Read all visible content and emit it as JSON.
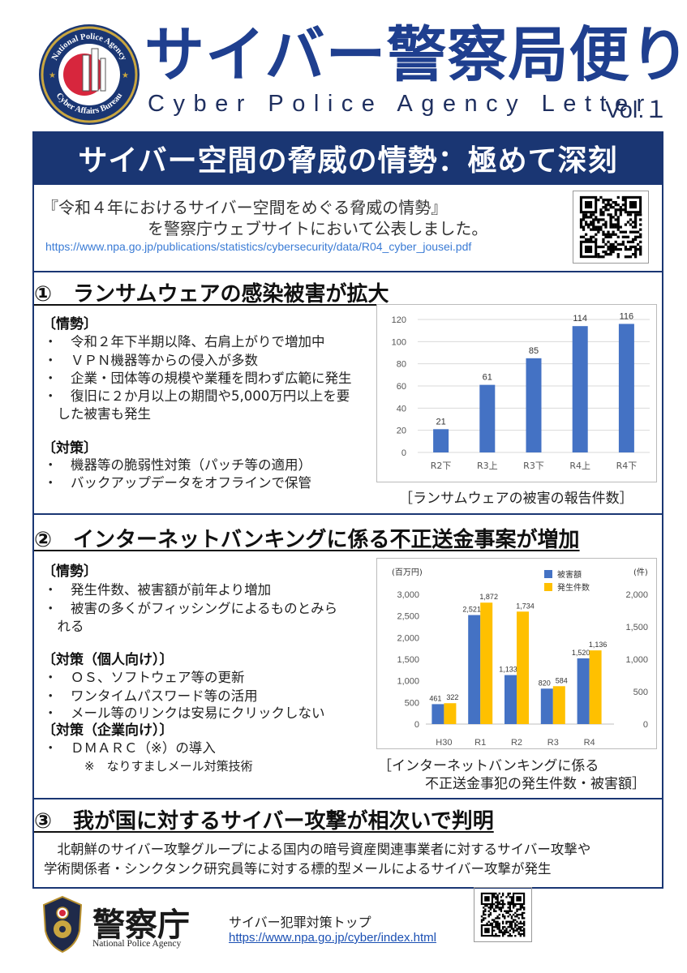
{
  "header": {
    "title": "サイバー警察局便り",
    "subtitle": "Cyber Police Agency Letter",
    "volume": "Vol.１",
    "emblem_top_text": "National Police Agency",
    "emblem_bottom_text": "Cyber Affairs Bureau"
  },
  "banner": {
    "text": "サイバー空間の脅威の情勢：極めて深刻"
  },
  "intro": {
    "line1": "『令和４年におけるサイバー空間をめぐる脅威の情勢』",
    "line2": "を警察庁ウェブサイトにおいて公表しました。",
    "url": "https://www.npa.go.jp/publications/statistics/cybersecurity/data/R04_cyber_jousei.pdf"
  },
  "section1": {
    "heading": "①　ランサムウェアの感染被害が拡大",
    "situation_label": "〔情勢〕",
    "situation_items": [
      "・　令和２年下半期以降、右肩上がりで増加中",
      "・　ＶＰＮ機器等からの侵入が多数",
      "・　企業・団体等の規模や業種を問わず広範に発生",
      "・　復旧に２か月以上の期間や5,000万円以上を要",
      "　した被害も発生"
    ],
    "measures_label": "〔対策〕",
    "measures_items": [
      "・　機器等の脆弱性対策（パッチ等の適用）",
      "・　バックアップデータをオフラインで保管"
    ],
    "chart_caption": "［ランサムウェアの被害の報告件数］"
  },
  "section2": {
    "heading": "②　インターネットバンキングに係る不正送金事案が増加",
    "situation_label": "〔情勢〕",
    "situation_items": [
      "・　発生件数、被害額が前年より増加",
      "・　被害の多くがフィッシングによるものとみら",
      "　れる"
    ],
    "measures_personal_label": "〔対策（個人向け）〕",
    "measures_personal_items": [
      "・　ＯＳ、ソフトウェア等の更新",
      "・　ワンタイムパスワード等の活用",
      "・　メール等のリンクは安易にクリックしない"
    ],
    "measures_corporate_label": "〔対策（企業向け）〕",
    "measures_corporate_items": [
      "・　ＤＭＡＲＣ（※）の導入"
    ],
    "note": "※　なりすましメール対策技術",
    "chart_caption_1": "［インターネットバンキングに係る",
    "chart_caption_2": "不正送金事犯の発生件数・被害額］"
  },
  "section3": {
    "heading": "③　我が国に対するサイバー攻撃が相次いで判明",
    "body_line1": "　北朝鮮のサイバー攻撃グループによる国内の暗号資産関連事業者に対するサイバー攻撃や",
    "body_line2": "学術関係者・シンクタンク研究員等に対する標的型メールによるサイバー攻撃が発生"
  },
  "footer": {
    "npa_name": "警察庁",
    "npa_english": "National Police Agency",
    "cyber_top_label": "サイバー犯罪対策トップ",
    "cyber_top_url": "https://www.npa.go.jp/cyber/index.html"
  },
  "colors": {
    "navy": "#1a3673",
    "title_blue": "#1f3f8f",
    "bar_blue": "#4472c4",
    "bar_yellow": "#ffc000"
  },
  "chart_data": [
    {
      "type": "bar",
      "categories": [
        "R2下",
        "R3上",
        "R3下",
        "R4上",
        "R4下"
      ],
      "values": [
        21,
        61,
        85,
        114,
        116
      ],
      "ylim": [
        0,
        120
      ],
      "yticks": [
        0,
        20,
        40,
        60,
        80,
        100,
        120
      ],
      "title": "",
      "xlabel": "",
      "ylabel": "",
      "grid": true,
      "data_labels": true
    },
    {
      "type": "bar",
      "categories": [
        "H30",
        "R1",
        "R2",
        "R3",
        "R4"
      ],
      "series": [
        {
          "name": "被害額",
          "values": [
            461,
            2521,
            1133,
            820,
            1520
          ],
          "labels": [
            "461",
            "2,521",
            "1,133",
            "820",
            "1,520"
          ],
          "axis": "left"
        },
        {
          "name": "発生件数",
          "values": [
            322,
            1872,
            1734,
            584,
            1136
          ],
          "labels": [
            "322",
            "1,872",
            "1,734",
            "584",
            "1,136"
          ],
          "axis": "right"
        }
      ],
      "left_axis_unit": "(百万円)",
      "right_axis_unit": "(件)",
      "ylim_left": [
        0,
        3000
      ],
      "ylim_right": [
        0,
        2000
      ],
      "yticks_left": [
        "0",
        "500",
        "1,000",
        "1,500",
        "2,000",
        "2,500",
        "3,000"
      ],
      "yticks_right": [
        "0",
        "500",
        "1,000",
        "1,500",
        "2,000"
      ],
      "legend": "top-right",
      "grid": false
    }
  ]
}
